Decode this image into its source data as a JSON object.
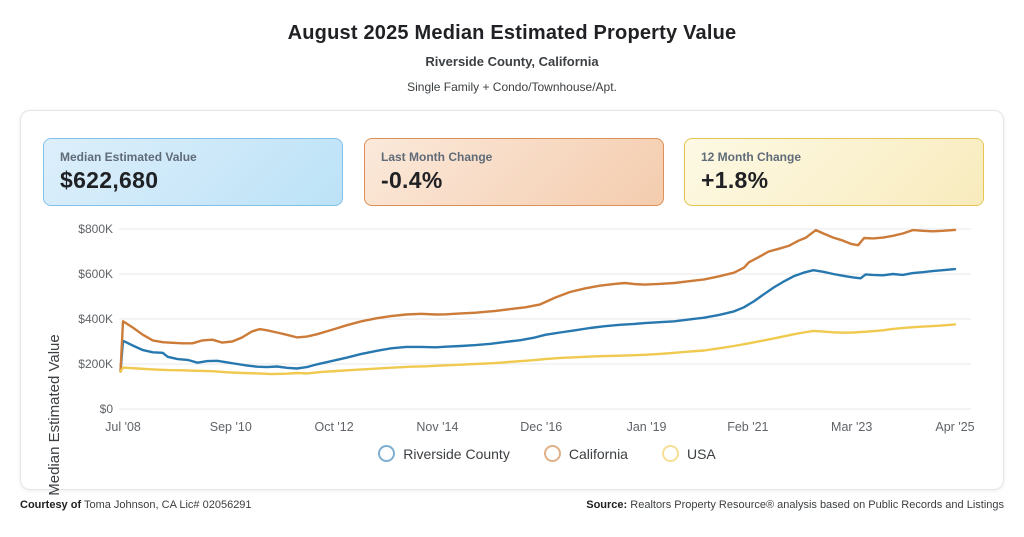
{
  "header": {
    "title": "August 2025 Median Estimated Property Value",
    "subtitle": "Riverside County, California",
    "property_types": "Single Family + Condo/Townhouse/Apt."
  },
  "cards": [
    {
      "label": "Median Estimated Value",
      "value": "$622,680",
      "bg_from": "#ddeffb",
      "bg_to": "#bce2f7",
      "border": "#82c0e8"
    },
    {
      "label": "Last Month Change",
      "value": "-0.4%",
      "bg_from": "#fbe9da",
      "bg_to": "#f4ccae",
      "border": "#dd8f55"
    },
    {
      "label": "12 Month Change",
      "value": "+1.8%",
      "bg_from": "#fdf9e4",
      "bg_to": "#f8ebbd",
      "border": "#e5c54f"
    }
  ],
  "footer": {
    "courtesy_label": "Courtesy of",
    "courtesy_text": " Toma Johnson, CA Lic# 02056291",
    "source_label": "Source:",
    "source_text": " Realtors Property Resource® analysis based on Public Records and Listings"
  },
  "chart_data": {
    "type": "line",
    "title": "August 2025 Median Estimated Property Value",
    "xlabel": "",
    "ylabel": "Median Estimated Value",
    "units": "USD thousands",
    "grid": "horizontal",
    "legend_position": "bottom",
    "x_range": [
      2008.5,
      2025.25
    ],
    "y_max": 800,
    "y_ticks": [
      {
        "label": "$0",
        "value": 0
      },
      {
        "label": "$200K",
        "value": 200
      },
      {
        "label": "$400K",
        "value": 400
      },
      {
        "label": "$600K",
        "value": 600
      },
      {
        "label": "$800K",
        "value": 800
      }
    ],
    "x_ticks": [
      {
        "label": "Jul '08",
        "x": 2008.5
      },
      {
        "label": "Sep '10",
        "x": 2010.67
      },
      {
        "label": "Oct '12",
        "x": 2012.75
      },
      {
        "label": "Nov '14",
        "x": 2014.83
      },
      {
        "label": "Dec '16",
        "x": 2016.92
      },
      {
        "label": "Jan '19",
        "x": 2019.04
      },
      {
        "label": "Feb '21",
        "x": 2021.08
      },
      {
        "label": "Mar '23",
        "x": 2023.17
      },
      {
        "label": "Apr '25",
        "x": 2025.25
      }
    ],
    "series": [
      {
        "name": "Riverside County",
        "color": "#2878b0",
        "points": [
          [
            2008.45,
            166
          ],
          [
            2008.5,
            303
          ],
          [
            2008.7,
            282
          ],
          [
            2008.9,
            262
          ],
          [
            2009.1,
            252
          ],
          [
            2009.3,
            250
          ],
          [
            2009.4,
            232
          ],
          [
            2009.6,
            222
          ],
          [
            2009.8,
            218
          ],
          [
            2010.0,
            206
          ],
          [
            2010.2,
            213
          ],
          [
            2010.4,
            214
          ],
          [
            2010.6,
            207
          ],
          [
            2010.8,
            200
          ],
          [
            2011.0,
            193
          ],
          [
            2011.2,
            188
          ],
          [
            2011.4,
            186
          ],
          [
            2011.6,
            189
          ],
          [
            2011.8,
            183
          ],
          [
            2012.0,
            180
          ],
          [
            2012.2,
            186
          ],
          [
            2012.4,
            198
          ],
          [
            2012.6,
            208
          ],
          [
            2012.8,
            218
          ],
          [
            2013.0,
            228
          ],
          [
            2013.3,
            245
          ],
          [
            2013.6,
            258
          ],
          [
            2013.9,
            270
          ],
          [
            2014.2,
            276
          ],
          [
            2014.5,
            276
          ],
          [
            2014.8,
            274
          ],
          [
            2015.0,
            277
          ],
          [
            2015.3,
            280
          ],
          [
            2015.6,
            284
          ],
          [
            2015.9,
            290
          ],
          [
            2016.2,
            298
          ],
          [
            2016.5,
            306
          ],
          [
            2016.8,
            318
          ],
          [
            2017.0,
            330
          ],
          [
            2017.3,
            340
          ],
          [
            2017.6,
            350
          ],
          [
            2017.9,
            360
          ],
          [
            2018.2,
            368
          ],
          [
            2018.5,
            374
          ],
          [
            2018.8,
            378
          ],
          [
            2019.0,
            382
          ],
          [
            2019.3,
            386
          ],
          [
            2019.6,
            390
          ],
          [
            2019.9,
            398
          ],
          [
            2020.2,
            406
          ],
          [
            2020.5,
            418
          ],
          [
            2020.8,
            434
          ],
          [
            2021.0,
            452
          ],
          [
            2021.2,
            478
          ],
          [
            2021.4,
            510
          ],
          [
            2021.6,
            540
          ],
          [
            2021.8,
            566
          ],
          [
            2022.0,
            590
          ],
          [
            2022.2,
            606
          ],
          [
            2022.4,
            617
          ],
          [
            2022.6,
            610
          ],
          [
            2022.8,
            600
          ],
          [
            2023.0,
            592
          ],
          [
            2023.2,
            585
          ],
          [
            2023.35,
            581
          ],
          [
            2023.45,
            598
          ],
          [
            2023.6,
            596
          ],
          [
            2023.8,
            594
          ],
          [
            2024.0,
            600
          ],
          [
            2024.2,
            596
          ],
          [
            2024.4,
            604
          ],
          [
            2024.6,
            608
          ],
          [
            2024.8,
            613
          ],
          [
            2025.0,
            617
          ],
          [
            2025.25,
            622
          ]
        ]
      },
      {
        "name": "California",
        "color": "#cc7b38",
        "points": [
          [
            2008.45,
            166
          ],
          [
            2008.5,
            390
          ],
          [
            2008.7,
            362
          ],
          [
            2008.9,
            330
          ],
          [
            2009.1,
            305
          ],
          [
            2009.3,
            297
          ],
          [
            2009.5,
            294
          ],
          [
            2009.7,
            292
          ],
          [
            2009.9,
            292
          ],
          [
            2010.1,
            305
          ],
          [
            2010.3,
            308
          ],
          [
            2010.5,
            295
          ],
          [
            2010.7,
            300
          ],
          [
            2010.9,
            318
          ],
          [
            2011.1,
            345
          ],
          [
            2011.25,
            355
          ],
          [
            2011.4,
            350
          ],
          [
            2011.6,
            340
          ],
          [
            2011.8,
            330
          ],
          [
            2012.0,
            318
          ],
          [
            2012.2,
            322
          ],
          [
            2012.4,
            332
          ],
          [
            2012.6,
            345
          ],
          [
            2012.8,
            358
          ],
          [
            2013.0,
            372
          ],
          [
            2013.3,
            390
          ],
          [
            2013.6,
            403
          ],
          [
            2013.9,
            413
          ],
          [
            2014.2,
            420
          ],
          [
            2014.5,
            423
          ],
          [
            2014.8,
            420
          ],
          [
            2015.0,
            421
          ],
          [
            2015.3,
            425
          ],
          [
            2015.6,
            428
          ],
          [
            2016.0,
            436
          ],
          [
            2016.3,
            444
          ],
          [
            2016.6,
            452
          ],
          [
            2016.9,
            465
          ],
          [
            2017.2,
            495
          ],
          [
            2017.5,
            520
          ],
          [
            2017.8,
            536
          ],
          [
            2018.1,
            548
          ],
          [
            2018.4,
            556
          ],
          [
            2018.6,
            560
          ],
          [
            2018.8,
            555
          ],
          [
            2019.0,
            553
          ],
          [
            2019.3,
            556
          ],
          [
            2019.6,
            560
          ],
          [
            2019.9,
            568
          ],
          [
            2020.2,
            576
          ],
          [
            2020.5,
            590
          ],
          [
            2020.8,
            606
          ],
          [
            2021.0,
            628
          ],
          [
            2021.1,
            652
          ],
          [
            2021.3,
            675
          ],
          [
            2021.5,
            700
          ],
          [
            2021.7,
            712
          ],
          [
            2021.9,
            725
          ],
          [
            2022.1,
            748
          ],
          [
            2022.25,
            762
          ],
          [
            2022.45,
            795
          ],
          [
            2022.6,
            780
          ],
          [
            2022.8,
            762
          ],
          [
            2023.0,
            748
          ],
          [
            2023.17,
            733
          ],
          [
            2023.3,
            728
          ],
          [
            2023.42,
            760
          ],
          [
            2023.6,
            758
          ],
          [
            2023.8,
            762
          ],
          [
            2024.0,
            770
          ],
          [
            2024.2,
            780
          ],
          [
            2024.4,
            795
          ],
          [
            2024.6,
            792
          ],
          [
            2024.8,
            790
          ],
          [
            2025.0,
            792
          ],
          [
            2025.25,
            796
          ]
        ]
      },
      {
        "name": "USA",
        "color": "#f0c94f",
        "points": [
          [
            2008.45,
            166
          ],
          [
            2008.5,
            184
          ],
          [
            2008.8,
            180
          ],
          [
            2009.1,
            176
          ],
          [
            2009.4,
            173
          ],
          [
            2009.7,
            172
          ],
          [
            2010.0,
            170
          ],
          [
            2010.3,
            168
          ],
          [
            2010.6,
            163
          ],
          [
            2010.9,
            160
          ],
          [
            2011.2,
            158
          ],
          [
            2011.5,
            155
          ],
          [
            2011.8,
            157
          ],
          [
            2012.0,
            160
          ],
          [
            2012.2,
            158
          ],
          [
            2012.5,
            165
          ],
          [
            2012.8,
            169
          ],
          [
            2013.1,
            173
          ],
          [
            2013.4,
            177
          ],
          [
            2013.7,
            181
          ],
          [
            2014.0,
            185
          ],
          [
            2014.3,
            188
          ],
          [
            2014.6,
            190
          ],
          [
            2014.9,
            193
          ],
          [
            2015.2,
            196
          ],
          [
            2015.5,
            199
          ],
          [
            2015.8,
            202
          ],
          [
            2016.1,
            206
          ],
          [
            2016.4,
            211
          ],
          [
            2016.7,
            216
          ],
          [
            2017.0,
            222
          ],
          [
            2017.3,
            227
          ],
          [
            2017.6,
            230
          ],
          [
            2017.9,
            233
          ],
          [
            2018.2,
            235
          ],
          [
            2018.5,
            237
          ],
          [
            2018.8,
            239
          ],
          [
            2019.0,
            241
          ],
          [
            2019.3,
            245
          ],
          [
            2019.6,
            250
          ],
          [
            2019.9,
            255
          ],
          [
            2020.2,
            260
          ],
          [
            2020.5,
            270
          ],
          [
            2020.8,
            280
          ],
          [
            2021.1,
            292
          ],
          [
            2021.4,
            305
          ],
          [
            2021.7,
            318
          ],
          [
            2022.0,
            332
          ],
          [
            2022.2,
            340
          ],
          [
            2022.4,
            347
          ],
          [
            2022.6,
            344
          ],
          [
            2022.8,
            341
          ],
          [
            2023.0,
            339
          ],
          [
            2023.2,
            340
          ],
          [
            2023.5,
            344
          ],
          [
            2023.8,
            350
          ],
          [
            2024.0,
            356
          ],
          [
            2024.3,
            362
          ],
          [
            2024.6,
            366
          ],
          [
            2024.9,
            370
          ],
          [
            2025.1,
            373
          ],
          [
            2025.25,
            376
          ]
        ]
      }
    ]
  },
  "colors": {
    "tick_text": "#5f6368",
    "grid_line": "#e8eaed",
    "panel_border": "#e3e5e8"
  }
}
